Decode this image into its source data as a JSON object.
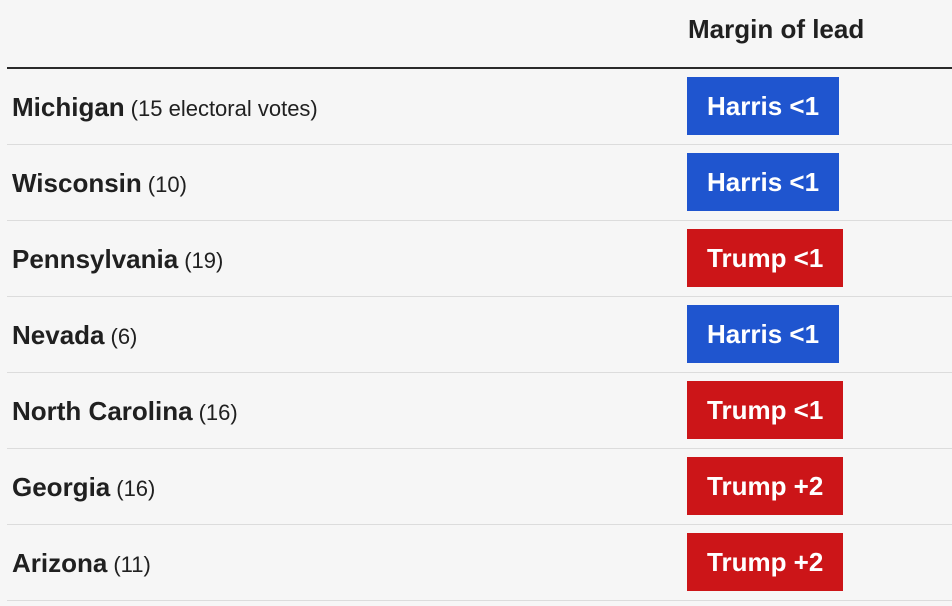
{
  "header": {
    "title": "Margin of lead"
  },
  "table": {
    "rows": [
      {
        "state": "Michigan",
        "votes": "(15 electoral votes)",
        "lead": "Harris <1",
        "color": "#1f55cf"
      },
      {
        "state": "Wisconsin",
        "votes": "(10)",
        "lead": "Harris <1",
        "color": "#1f55cf"
      },
      {
        "state": "Pennsylvania",
        "votes": "(19)",
        "lead": "Trump <1",
        "color": "#cc1518"
      },
      {
        "state": "Nevada",
        "votes": "(6)",
        "lead": "Harris <1",
        "color": "#1f55cf"
      },
      {
        "state": "North Carolina",
        "votes": "(16)",
        "lead": "Trump <1",
        "color": "#cc1518"
      },
      {
        "state": "Georgia",
        "votes": "(16)",
        "lead": "Trump +2",
        "color": "#cc1518"
      },
      {
        "state": "Arizona",
        "votes": "(11)",
        "lead": "Trump +2",
        "color": "#cc1518"
      }
    ]
  }
}
